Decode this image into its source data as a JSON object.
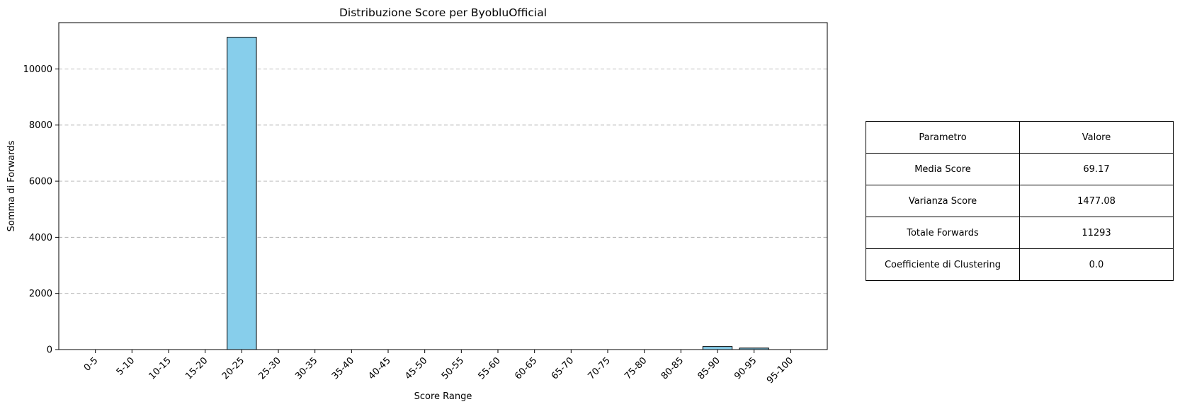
{
  "chart_data": {
    "type": "bar",
    "title": "Distribuzione Score per ByobluOfficial",
    "xlabel": "Score Range",
    "ylabel": "Somma di Forwards",
    "categories": [
      "0-5",
      "5-10",
      "10-15",
      "15-20",
      "20-25",
      "25-30",
      "30-35",
      "35-40",
      "40-45",
      "45-50",
      "50-55",
      "55-60",
      "60-65",
      "65-70",
      "70-75",
      "75-80",
      "80-85",
      "85-90",
      "90-95",
      "95-100"
    ],
    "values": [
      0,
      0,
      0,
      0,
      11130,
      0,
      0,
      0,
      0,
      0,
      0,
      0,
      0,
      0,
      0,
      0,
      0,
      110,
      53,
      0
    ],
    "ylim": [
      0,
      11650
    ],
    "yticks": [
      0,
      2000,
      4000,
      6000,
      8000,
      10000
    ],
    "grid": "y-dashed",
    "bar_color": "#87CEEB",
    "edge_color": "#000000"
  },
  "table": {
    "header": [
      "Parametro",
      "Valore"
    ],
    "rows": [
      [
        "Media Score",
        "69.17"
      ],
      [
        "Varianza Score",
        "1477.08"
      ],
      [
        "Totale Forwards",
        "11293"
      ],
      [
        "Coefficiente di Clustering",
        "0.0"
      ]
    ]
  }
}
